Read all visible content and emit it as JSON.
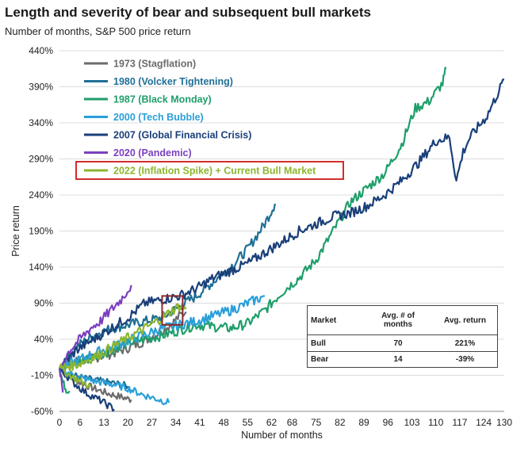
{
  "page": {
    "title": "Length and severity of bear and subsequent bull markets",
    "subtitle": "Number of months, S&P 500 price return"
  },
  "chart_data": {
    "type": "line",
    "title": "Length and severity of bear and subsequent bull markets",
    "subtitle": "Number of months, S&P 500 price return",
    "xlabel": "Number of months",
    "ylabel": "Price return",
    "xlim": [
      0,
      130
    ],
    "ylim": [
      -60,
      440
    ],
    "x_ticks": [
      0,
      6,
      13,
      20,
      27,
      34,
      41,
      48,
      55,
      62,
      68,
      75,
      82,
      89,
      96,
      103,
      110,
      117,
      124,
      130
    ],
    "y_ticks": [
      -60,
      -10,
      40,
      90,
      140,
      190,
      240,
      290,
      340,
      390,
      440
    ],
    "y_tick_labels": [
      "-60%",
      "-10%",
      "40%",
      "90%",
      "140%",
      "190%",
      "240%",
      "290%",
      "340%",
      "390%",
      "440%"
    ],
    "legend_position": "top-left",
    "series": [
      {
        "name": "1973 (Stagflation)",
        "color": "#6b6b6b",
        "bear": {
          "x": [
            0,
            3,
            6,
            10,
            14,
            18,
            21
          ],
          "y": [
            0,
            -12,
            -20,
            -28,
            -35,
            -40,
            -44
          ]
        },
        "bull": {
          "x": [
            0,
            5,
            10,
            15,
            20,
            25,
            30,
            33,
            35,
            37
          ],
          "y": [
            0,
            10,
            14,
            20,
            28,
            38,
            52,
            62,
            72,
            78
          ]
        }
      },
      {
        "name": "1980 (Volcker Tightening)",
        "color": "#1f6f96",
        "bear": {
          "x": [
            0,
            4,
            8,
            12,
            17,
            20
          ],
          "y": [
            0,
            -10,
            -15,
            -18,
            -22,
            -25
          ]
        },
        "bull": {
          "x": [
            0,
            5,
            10,
            15,
            20,
            25,
            30,
            35,
            40,
            45,
            50,
            55,
            60,
            63
          ],
          "y": [
            0,
            30,
            45,
            55,
            60,
            65,
            70,
            85,
            100,
            120,
            140,
            165,
            200,
            228
          ]
        }
      },
      {
        "name": "1987 (Black Monday)",
        "color": "#1f9e6a",
        "bear": {
          "x": [
            0,
            1,
            2,
            3
          ],
          "y": [
            0,
            -20,
            -30,
            -32
          ]
        },
        "bull": {
          "x": [
            0,
            10,
            20,
            30,
            40,
            50,
            55,
            60,
            65,
            70,
            75,
            80,
            85,
            90,
            95,
            100,
            104,
            108,
            112,
            113
          ],
          "y": [
            0,
            15,
            35,
            45,
            60,
            55,
            62,
            80,
            105,
            125,
            150,
            190,
            230,
            250,
            270,
            310,
            360,
            370,
            395,
            415
          ]
        }
      },
      {
        "name": "2000 (Tech Bubble)",
        "color": "#2a9fd8",
        "bear": {
          "x": [
            0,
            5,
            10,
            15,
            20,
            25,
            30,
            32
          ],
          "y": [
            0,
            -12,
            -18,
            -22,
            -28,
            -38,
            -45,
            -48
          ]
        },
        "bull": {
          "x": [
            0,
            10,
            20,
            30,
            40,
            50,
            55,
            60
          ],
          "y": [
            0,
            20,
            38,
            55,
            65,
            80,
            90,
            100
          ]
        }
      },
      {
        "name": "2007 (Global Financial Crisis)",
        "color": "#1a3f7a",
        "bear": {
          "x": [
            0,
            4,
            8,
            12,
            16
          ],
          "y": [
            0,
            -20,
            -35,
            -45,
            -57
          ]
        },
        "bull": {
          "x": [
            0,
            5,
            10,
            15,
            20,
            25,
            30,
            35,
            40,
            45,
            50,
            55,
            60,
            65,
            70,
            75,
            80,
            85,
            90,
            95,
            100,
            105,
            110,
            114,
            116,
            118,
            120,
            125,
            130
          ],
          "y": [
            0,
            25,
            40,
            55,
            70,
            90,
            95,
            100,
            110,
            125,
            135,
            145,
            160,
            175,
            190,
            200,
            210,
            215,
            225,
            240,
            260,
            285,
            315,
            320,
            260,
            300,
            320,
            350,
            400
          ]
        }
      },
      {
        "name": "2020 (Pandemic)",
        "color": "#7b3fbf",
        "bear": {
          "x": [
            0,
            1
          ],
          "y": [
            0,
            -34
          ]
        },
        "bull": {
          "x": [
            0,
            3,
            6,
            9,
            12,
            15,
            18,
            21
          ],
          "y": [
            0,
            25,
            40,
            55,
            65,
            80,
            95,
            115
          ]
        }
      },
      {
        "name": "2022 (Inflation Spike) + Current Bull Market",
        "color": "#8db52e",
        "bear": {
          "x": [
            0,
            3,
            6,
            9
          ],
          "y": [
            0,
            -10,
            -18,
            -25
          ]
        },
        "bull": {
          "x": [
            0,
            5,
            10,
            15,
            20,
            25,
            30,
            33,
            35,
            37
          ],
          "y": [
            0,
            5,
            15,
            28,
            42,
            55,
            70,
            80,
            86,
            82
          ]
        }
      }
    ],
    "highlight_legend_entry": "2022 (Inflation Spike) + Current Bull Market",
    "highlight_box_region": {
      "x": [
        30,
        36
      ],
      "y": [
        60,
        100
      ]
    },
    "table": {
      "headers": [
        "Market",
        "Avg. # of months",
        "Avg. return"
      ],
      "rows": [
        [
          "Bull",
          "70",
          "221%"
        ],
        [
          "Bear",
          "14",
          "-39%"
        ]
      ]
    }
  }
}
